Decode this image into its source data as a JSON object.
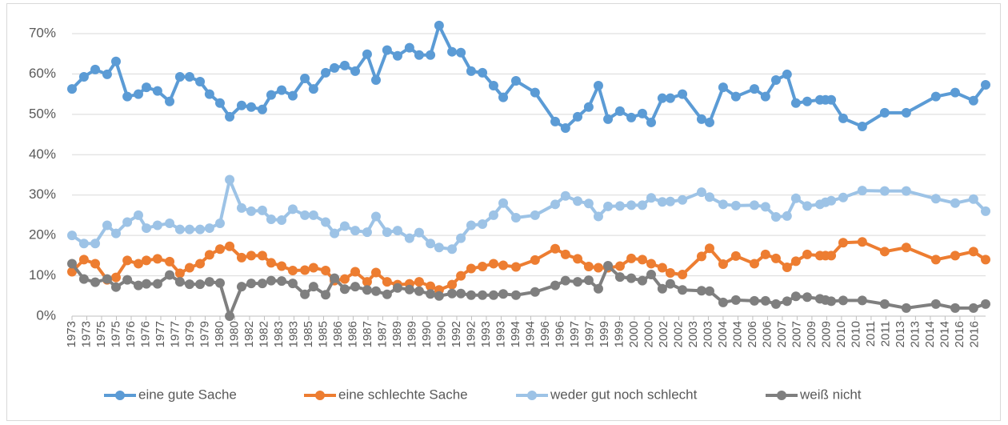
{
  "chart_data": {
    "type": "line",
    "x": [
      1973.0,
      1973.58,
      1974.13,
      1974.71,
      1975.14,
      1975.69,
      1976.23,
      1976.62,
      1977.16,
      1977.75,
      1978.25,
      1978.72,
      1979.23,
      1979.69,
      1980.2,
      1980.67,
      1981.25,
      1981.72,
      1982.26,
      1982.69,
      1983.2,
      1983.74,
      1984.33,
      1984.75,
      1985.34,
      1985.77,
      1986.27,
      1986.78,
      1987.36,
      1987.79,
      1988.33,
      1988.84,
      1989.42,
      1989.89,
      1990.44,
      1990.86,
      1991.49,
      1991.92,
      1992.42,
      1992.97,
      1993.51,
      1993.98,
      1994.6,
      1995.53,
      1996.51,
      1997.01,
      1997.6,
      1998.14,
      1998.61,
      1999.08,
      1999.66,
      2000.21,
      2000.75,
      2001.18,
      2001.72,
      2002.11,
      2002.7,
      2003.63,
      2004.02,
      2004.68,
      2005.3,
      2006.2,
      2006.74,
      2007.25,
      2007.79,
      2008.22,
      2008.77,
      2009.39,
      2009.66,
      2009.94,
      2010.52,
      2011.45,
      2012.54,
      2013.59,
      2015.03,
      2015.97,
      2016.86,
      2017.45
    ],
    "series": [
      {
        "name": "eine gute Sache",
        "color": "#5b9bd5",
        "values": [
          56.3,
          59.3,
          61.1,
          59.9,
          63.1,
          54.4,
          55.0,
          56.7,
          55.8,
          53.2,
          59.3,
          59.3,
          58.1,
          55.0,
          52.8,
          49.4,
          52.2,
          51.8,
          51.2,
          54.8,
          56.0,
          54.6,
          58.9,
          56.3,
          60.3,
          61.5,
          62.1,
          60.7,
          64.9,
          58.5,
          65.9,
          64.5,
          66.5,
          64.7,
          64.7,
          72.0,
          65.5,
          65.3,
          60.7,
          60.3,
          57.1,
          54.2,
          58.3,
          55.4,
          48.2,
          46.6,
          49.4,
          51.8,
          57.1,
          48.8,
          50.8,
          49.2,
          50.2,
          48.0,
          54.0,
          54.0,
          55.0,
          48.8,
          48.0,
          56.7,
          54.4,
          56.3,
          54.4,
          58.5,
          59.9,
          52.8,
          53.2,
          53.6,
          53.6,
          53.6,
          49.0,
          47.0,
          50.4,
          50.4,
          54.4,
          55.4,
          53.4,
          57.3
        ]
      },
      {
        "name": "eine schlechte Sache",
        "color": "#ed7d31",
        "values": [
          11,
          14,
          13,
          9,
          9.6,
          13.8,
          13,
          13.8,
          14.2,
          13.5,
          10.6,
          12,
          13,
          15.2,
          16.6,
          17.3,
          14.5,
          15,
          15,
          13.2,
          12.4,
          11.3,
          11.4,
          12,
          11.3,
          8.8,
          9.2,
          11,
          8.5,
          10.8,
          8.5,
          7.8,
          8,
          8.5,
          7.4,
          6.5,
          7.8,
          10,
          11.8,
          12.3,
          13,
          12.6,
          12.2,
          13.9,
          16.7,
          15.3,
          14.2,
          12.3,
          12,
          12,
          12.4,
          14.3,
          14,
          13,
          12,
          10.7,
          10.3,
          14.8,
          16.8,
          12.9,
          14.9,
          13,
          15.3,
          14.3,
          12.1,
          13.6,
          15.3,
          15,
          15,
          15,
          18.2,
          18.4,
          16,
          17,
          14,
          15,
          16,
          14
        ]
      },
      {
        "name": "weder gut noch schlecht",
        "color": "#9dc3e6",
        "values": [
          20,
          18,
          18,
          22.5,
          20.5,
          23.3,
          25,
          21.8,
          22.5,
          23,
          21.5,
          21.5,
          21.5,
          21.8,
          23,
          33.8,
          26.8,
          26,
          26.2,
          24,
          23.8,
          26.5,
          25,
          25,
          23.3,
          20.5,
          22.3,
          21.2,
          20.8,
          24.7,
          20.8,
          21.2,
          19.3,
          20.7,
          18,
          17,
          16.6,
          19.3,
          22.5,
          22.8,
          25,
          28,
          24.4,
          25,
          27.7,
          29.8,
          28.5,
          27.9,
          24.7,
          27.2,
          27.3,
          27.5,
          27.5,
          29.3,
          28.3,
          28.4,
          28.8,
          30.7,
          29.5,
          27.7,
          27.4,
          27.5,
          27.1,
          24.6,
          24.8,
          29.2,
          27.3,
          27.7,
          28.2,
          28.6,
          29.4,
          31.1,
          31,
          31,
          29.1,
          28,
          29,
          26
        ]
      },
      {
        "name": "weiß nicht",
        "color": "#7f7f7f",
        "values": [
          13,
          9.2,
          8.4,
          9.2,
          7.2,
          9,
          7.6,
          8,
          8,
          10.2,
          8.5,
          7.9,
          7.9,
          8.5,
          8.2,
          0,
          7.3,
          8.1,
          8.1,
          8.8,
          8.7,
          8.1,
          5.4,
          7.3,
          5.3,
          9.4,
          6.7,
          7.3,
          6.5,
          6.2,
          5.4,
          7,
          6.6,
          6.2,
          5.5,
          5,
          5.6,
          5.6,
          5.2,
          5.2,
          5.2,
          5.5,
          5.2,
          6,
          7.6,
          8.8,
          8.5,
          8.9,
          6.8,
          12.5,
          9.7,
          9.4,
          8.8,
          10.3,
          6.8,
          8,
          6.5,
          6.3,
          6.2,
          3.4,
          4,
          3.8,
          3.8,
          3,
          3.7,
          4.9,
          4.7,
          4.3,
          4,
          3.7,
          3.9,
          3.9,
          3,
          2,
          3,
          2,
          2,
          3
        ]
      }
    ],
    "xlim": [
      1973,
      2017.45
    ],
    "xticks": [
      {
        "value": 1973,
        "label": "1973"
      },
      {
        "value": 1973.72,
        "label": "1973"
      },
      {
        "value": 1974.44,
        "label": "1975"
      },
      {
        "value": 1975.16,
        "label": "1975"
      },
      {
        "value": 1975.88,
        "label": "1976"
      },
      {
        "value": 1976.6,
        "label": "1976"
      },
      {
        "value": 1977.32,
        "label": "1977"
      },
      {
        "value": 1978.04,
        "label": "1977"
      },
      {
        "value": 1978.76,
        "label": "1979"
      },
      {
        "value": 1979.48,
        "label": "1979"
      },
      {
        "value": 1980.2,
        "label": "1980"
      },
      {
        "value": 1980.92,
        "label": "1980"
      },
      {
        "value": 1981.64,
        "label": "1982"
      },
      {
        "value": 1982.36,
        "label": "1982"
      },
      {
        "value": 1983.08,
        "label": "1983"
      },
      {
        "value": 1983.8,
        "label": "1983"
      },
      {
        "value": 1984.52,
        "label": "1985"
      },
      {
        "value": 1985.24,
        "label": "1985"
      },
      {
        "value": 1985.96,
        "label": "1986"
      },
      {
        "value": 1986.68,
        "label": "1986"
      },
      {
        "value": 1987.4,
        "label": "1987"
      },
      {
        "value": 1988.12,
        "label": "1987"
      },
      {
        "value": 1988.84,
        "label": "1989"
      },
      {
        "value": 1989.56,
        "label": "1989"
      },
      {
        "value": 1990.28,
        "label": "1990"
      },
      {
        "value": 1991,
        "label": "1990"
      },
      {
        "value": 1991.72,
        "label": "1992"
      },
      {
        "value": 1992.44,
        "label": "1992"
      },
      {
        "value": 1993.16,
        "label": "1993"
      },
      {
        "value": 1993.88,
        "label": "1993"
      },
      {
        "value": 1994.6,
        "label": "1994"
      },
      {
        "value": 1995.32,
        "label": "1994"
      },
      {
        "value": 1996.04,
        "label": "1996"
      },
      {
        "value": 1996.76,
        "label": "1996"
      },
      {
        "value": 1997.48,
        "label": "1997"
      },
      {
        "value": 1998.2,
        "label": "1997"
      },
      {
        "value": 1998.92,
        "label": "1999"
      },
      {
        "value": 1999.64,
        "label": "1999"
      },
      {
        "value": 2000.36,
        "label": "2000"
      },
      {
        "value": 2001.08,
        "label": "2000"
      },
      {
        "value": 2001.8,
        "label": "2002"
      },
      {
        "value": 2002.52,
        "label": "2002"
      },
      {
        "value": 2003.24,
        "label": "2003"
      },
      {
        "value": 2003.96,
        "label": "2003"
      },
      {
        "value": 2004.68,
        "label": "2004"
      },
      {
        "value": 2005.4,
        "label": "2004"
      },
      {
        "value": 2006.12,
        "label": "2006"
      },
      {
        "value": 2006.84,
        "label": "2006"
      },
      {
        "value": 2007.56,
        "label": "2007"
      },
      {
        "value": 2008.28,
        "label": "2007"
      },
      {
        "value": 2009,
        "label": "2009"
      },
      {
        "value": 2009.72,
        "label": "2009"
      },
      {
        "value": 2010.44,
        "label": "2010"
      },
      {
        "value": 2011.16,
        "label": "2010"
      },
      {
        "value": 2011.88,
        "label": "2011"
      },
      {
        "value": 2012.6,
        "label": "2011"
      },
      {
        "value": 2013.32,
        "label": "2013"
      },
      {
        "value": 2014.04,
        "label": "2013"
      },
      {
        "value": 2014.76,
        "label": "2014"
      },
      {
        "value": 2015.48,
        "label": "2014"
      },
      {
        "value": 2016.2,
        "label": "2016"
      },
      {
        "value": 2016.92,
        "label": "2016"
      }
    ],
    "ylim": [
      0,
      70
    ],
    "yticks": [
      {
        "value": 0,
        "label": "0%"
      },
      {
        "value": 10,
        "label": "10%"
      },
      {
        "value": 20,
        "label": "20%"
      },
      {
        "value": 30,
        "label": "30%"
      },
      {
        "value": 40,
        "label": "40%"
      },
      {
        "value": 50,
        "label": "50%"
      },
      {
        "value": 60,
        "label": "60%"
      },
      {
        "value": 70,
        "label": "70%"
      }
    ],
    "grid": true,
    "legend": "bottom"
  }
}
